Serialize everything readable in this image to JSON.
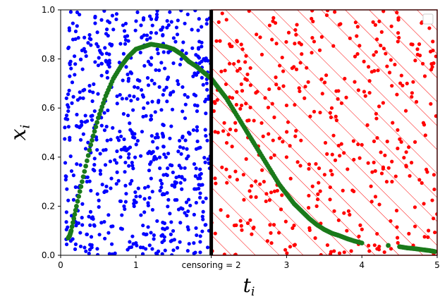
{
  "chart_data": {
    "type": "scatter",
    "title": "",
    "xlabel": "t_i",
    "ylabel": "x_i",
    "xlim": [
      0,
      5
    ],
    "ylim": [
      0,
      1
    ],
    "grid": false,
    "legend": "top-right (empty)",
    "x_ticks": [
      "0",
      "1",
      "censoring = 2",
      "3",
      "4",
      "5"
    ],
    "x_tick_values": [
      0,
      1,
      2,
      3,
      4,
      5
    ],
    "y_ticks": [
      "0.0",
      "0.2",
      "0.4",
      "0.6",
      "0.8",
      "1.0"
    ],
    "y_tick_values": [
      0,
      0.2,
      0.4,
      0.6,
      0.8,
      1.0
    ],
    "censoring": {
      "value": 2,
      "label": "censoring = 2",
      "line_color": "#000000",
      "region": [
        2,
        5
      ],
      "region_hatch": "diagonal",
      "region_color": "#ff0000"
    },
    "series": [
      {
        "role": "uncensored points",
        "color": "#0000ff",
        "x_range": [
          0.05,
          2.0
        ],
        "y_range": [
          0.0,
          1.0
        ],
        "approx_count": 700,
        "sample": [
          [
            0.08,
            0.57
          ],
          [
            0.12,
            0.47
          ],
          [
            0.15,
            0.62
          ],
          [
            0.22,
            0.99
          ],
          [
            0.3,
            0.64
          ],
          [
            0.35,
            0.3
          ],
          [
            0.4,
            0.88
          ],
          [
            0.45,
            0.12
          ],
          [
            0.55,
            0.82
          ],
          [
            0.6,
            0.43
          ],
          [
            0.7,
            0.92
          ],
          [
            0.8,
            0.22
          ],
          [
            0.9,
            0.71
          ],
          [
            1.0,
            0.05
          ],
          [
            1.1,
            0.96
          ],
          [
            1.2,
            0.38
          ],
          [
            1.3,
            0.63
          ],
          [
            1.45,
            0.17
          ],
          [
            1.55,
            0.9
          ],
          [
            1.7,
            0.5
          ],
          [
            1.8,
            0.27
          ],
          [
            1.9,
            0.8
          ],
          [
            1.97,
            0.1
          ]
        ]
      },
      {
        "role": "censored points",
        "color": "#ff0000",
        "x_range": [
          2.0,
          5.0
        ],
        "y_range": [
          0.0,
          1.0
        ],
        "approx_count": 420,
        "sample": [
          [
            2.05,
            0.62
          ],
          [
            2.1,
            0.95
          ],
          [
            2.2,
            0.35
          ],
          [
            2.3,
            0.78
          ],
          [
            2.4,
            0.12
          ],
          [
            2.5,
            0.55
          ],
          [
            2.6,
            0.9
          ],
          [
            2.7,
            0.3
          ],
          [
            2.8,
            0.05
          ],
          [
            2.9,
            0.68
          ],
          [
            3.0,
            0.4
          ],
          [
            3.2,
            0.82
          ],
          [
            3.4,
            0.2
          ],
          [
            3.6,
            0.6
          ],
          [
            3.8,
            0.1
          ],
          [
            4.0,
            0.45
          ],
          [
            4.2,
            0.88
          ],
          [
            4.4,
            0.3
          ],
          [
            4.6,
            0.7
          ],
          [
            4.8,
            0.95
          ],
          [
            4.95,
            0.15
          ]
        ]
      },
      {
        "role": "curve",
        "color": "#1a7a1a",
        "points": [
          [
            0.1,
            0.07
          ],
          [
            0.12,
            0.08
          ],
          [
            0.14,
            0.1
          ],
          [
            0.21,
            0.2
          ],
          [
            0.3,
            0.32
          ],
          [
            0.4,
            0.45
          ],
          [
            0.5,
            0.56
          ],
          [
            0.6,
            0.65
          ],
          [
            0.7,
            0.72
          ],
          [
            0.8,
            0.77
          ],
          [
            0.9,
            0.81
          ],
          [
            1.0,
            0.84
          ],
          [
            1.1,
            0.85
          ],
          [
            1.2,
            0.86
          ],
          [
            1.3,
            0.855
          ],
          [
            1.4,
            0.85
          ],
          [
            1.5,
            0.84
          ],
          [
            1.6,
            0.82
          ],
          [
            1.7,
            0.79
          ],
          [
            1.8,
            0.77
          ],
          [
            1.9,
            0.745
          ],
          [
            2.0,
            0.72
          ],
          [
            2.1,
            0.68
          ],
          [
            2.2,
            0.64
          ],
          [
            2.3,
            0.59
          ],
          [
            2.4,
            0.54
          ],
          [
            2.5,
            0.49
          ],
          [
            2.6,
            0.44
          ],
          [
            2.7,
            0.39
          ],
          [
            2.8,
            0.34
          ],
          [
            2.9,
            0.29
          ],
          [
            3.0,
            0.25
          ],
          [
            3.1,
            0.21
          ],
          [
            3.2,
            0.18
          ],
          [
            3.3,
            0.15
          ],
          [
            3.4,
            0.125
          ],
          [
            3.5,
            0.105
          ],
          [
            3.6,
            0.09
          ],
          [
            3.7,
            0.08
          ],
          [
            3.8,
            0.068
          ],
          [
            3.9,
            0.058
          ],
          [
            4.0,
            0.05
          ],
          [
            4.35,
            0.04
          ],
          [
            4.5,
            0.035
          ],
          [
            4.6,
            0.03
          ],
          [
            4.7,
            0.027
          ],
          [
            4.8,
            0.023
          ],
          [
            4.9,
            0.019
          ],
          [
            4.97,
            0.015
          ]
        ]
      }
    ]
  }
}
